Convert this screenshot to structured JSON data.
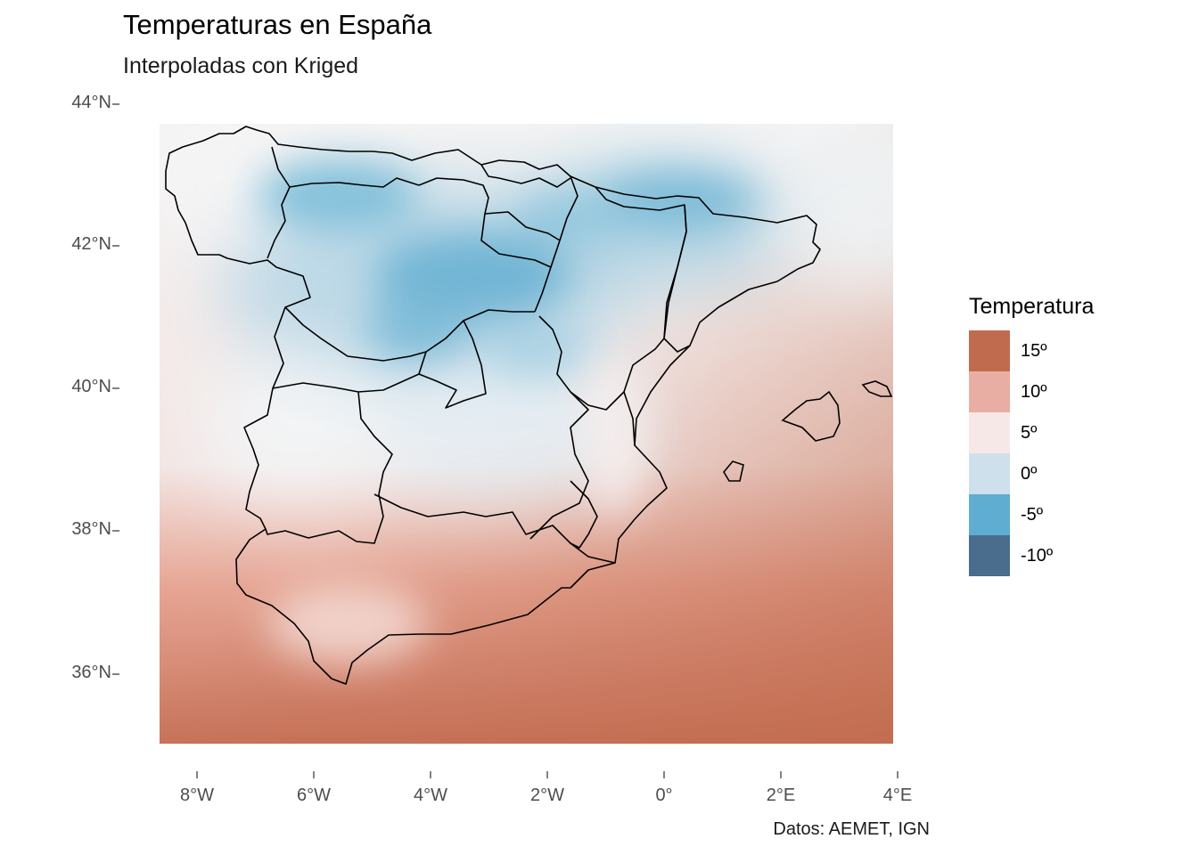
{
  "title": "Temperaturas en España",
  "subtitle": "Interpoladas con Kriged",
  "caption": "Datos: AEMET, IGN",
  "axes": {
    "y_ticks": [
      "44°N",
      "42°N",
      "40°N",
      "38°N",
      "36°N"
    ],
    "x_ticks": [
      "8°W",
      "6°W",
      "4°W",
      "2°W",
      "0°",
      "2°E",
      "4°E"
    ],
    "lat_range": [
      35,
      43.7
    ],
    "lon_range": [
      -8.6,
      3.9
    ]
  },
  "legend": {
    "title": "Temperatura",
    "items": [
      {
        "label": "15º",
        "color": "#c16b4e"
      },
      {
        "label": "10º",
        "color": "#e9aea3"
      },
      {
        "label": "5º",
        "color": "#f7e8e8"
      },
      {
        "label": "0º",
        "color": "#cde0eb"
      },
      {
        "label": "-5º",
        "color": "#5fadd0"
      },
      {
        "label": "-10º",
        "color": "#4a6c8d"
      }
    ]
  },
  "colors": {
    "warm": "#c16b4e",
    "cold": "#5fadd0",
    "neutral": "#f5f7f8",
    "border": "#000000"
  }
}
